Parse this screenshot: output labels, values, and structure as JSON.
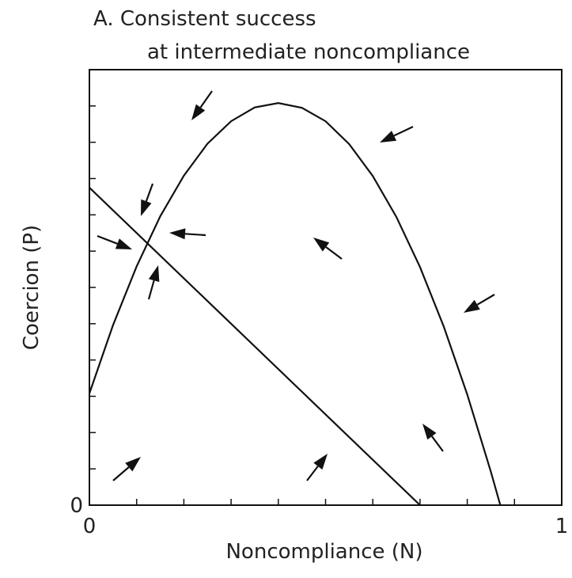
{
  "chart_data": {
    "type": "line",
    "title": [
      "A.  Consistent success",
      "at intermediate noncompliance"
    ],
    "x_label": "Noncompliance (N)",
    "y_label": "Coercion (P)",
    "series": [
      {
        "color": "#111111",
        "x": [
          0,
          0.7
        ],
        "values": [
          0.875,
          0
        ]
      },
      {
        "color": "#111111",
        "x": [
          0,
          0.05,
          0.1,
          0.15,
          0.2,
          0.25,
          0.3,
          0.35,
          0.4,
          0.45,
          0.5,
          0.55,
          0.6,
          0.65,
          0.7,
          0.75,
          0.8,
          0.85,
          0.87
        ],
        "values": [
          0.308,
          0.496,
          0.658,
          0.796,
          0.908,
          0.996,
          1.058,
          1.096,
          1.108,
          1.095,
          1.058,
          0.995,
          0.907,
          0.794,
          0.656,
          0.493,
          0.305,
          0.092,
          0
        ]
      }
    ],
    "xlim": [
      0,
      1
    ],
    "xticks": [
      0,
      1
    ],
    "xminor_ticks": [
      0.1,
      0.2,
      0.3,
      0.4,
      0.5,
      0.6,
      0.7,
      0.8,
      0.9
    ],
    "ylim": [
      0,
      1.2
    ],
    "yticks": [
      0
    ],
    "yminor_ticks": [
      0.1,
      0.2,
      0.3,
      0.4,
      0.5,
      0.6,
      0.7,
      0.8,
      0.9,
      1.0,
      1.1
    ],
    "grid": false
  }
}
